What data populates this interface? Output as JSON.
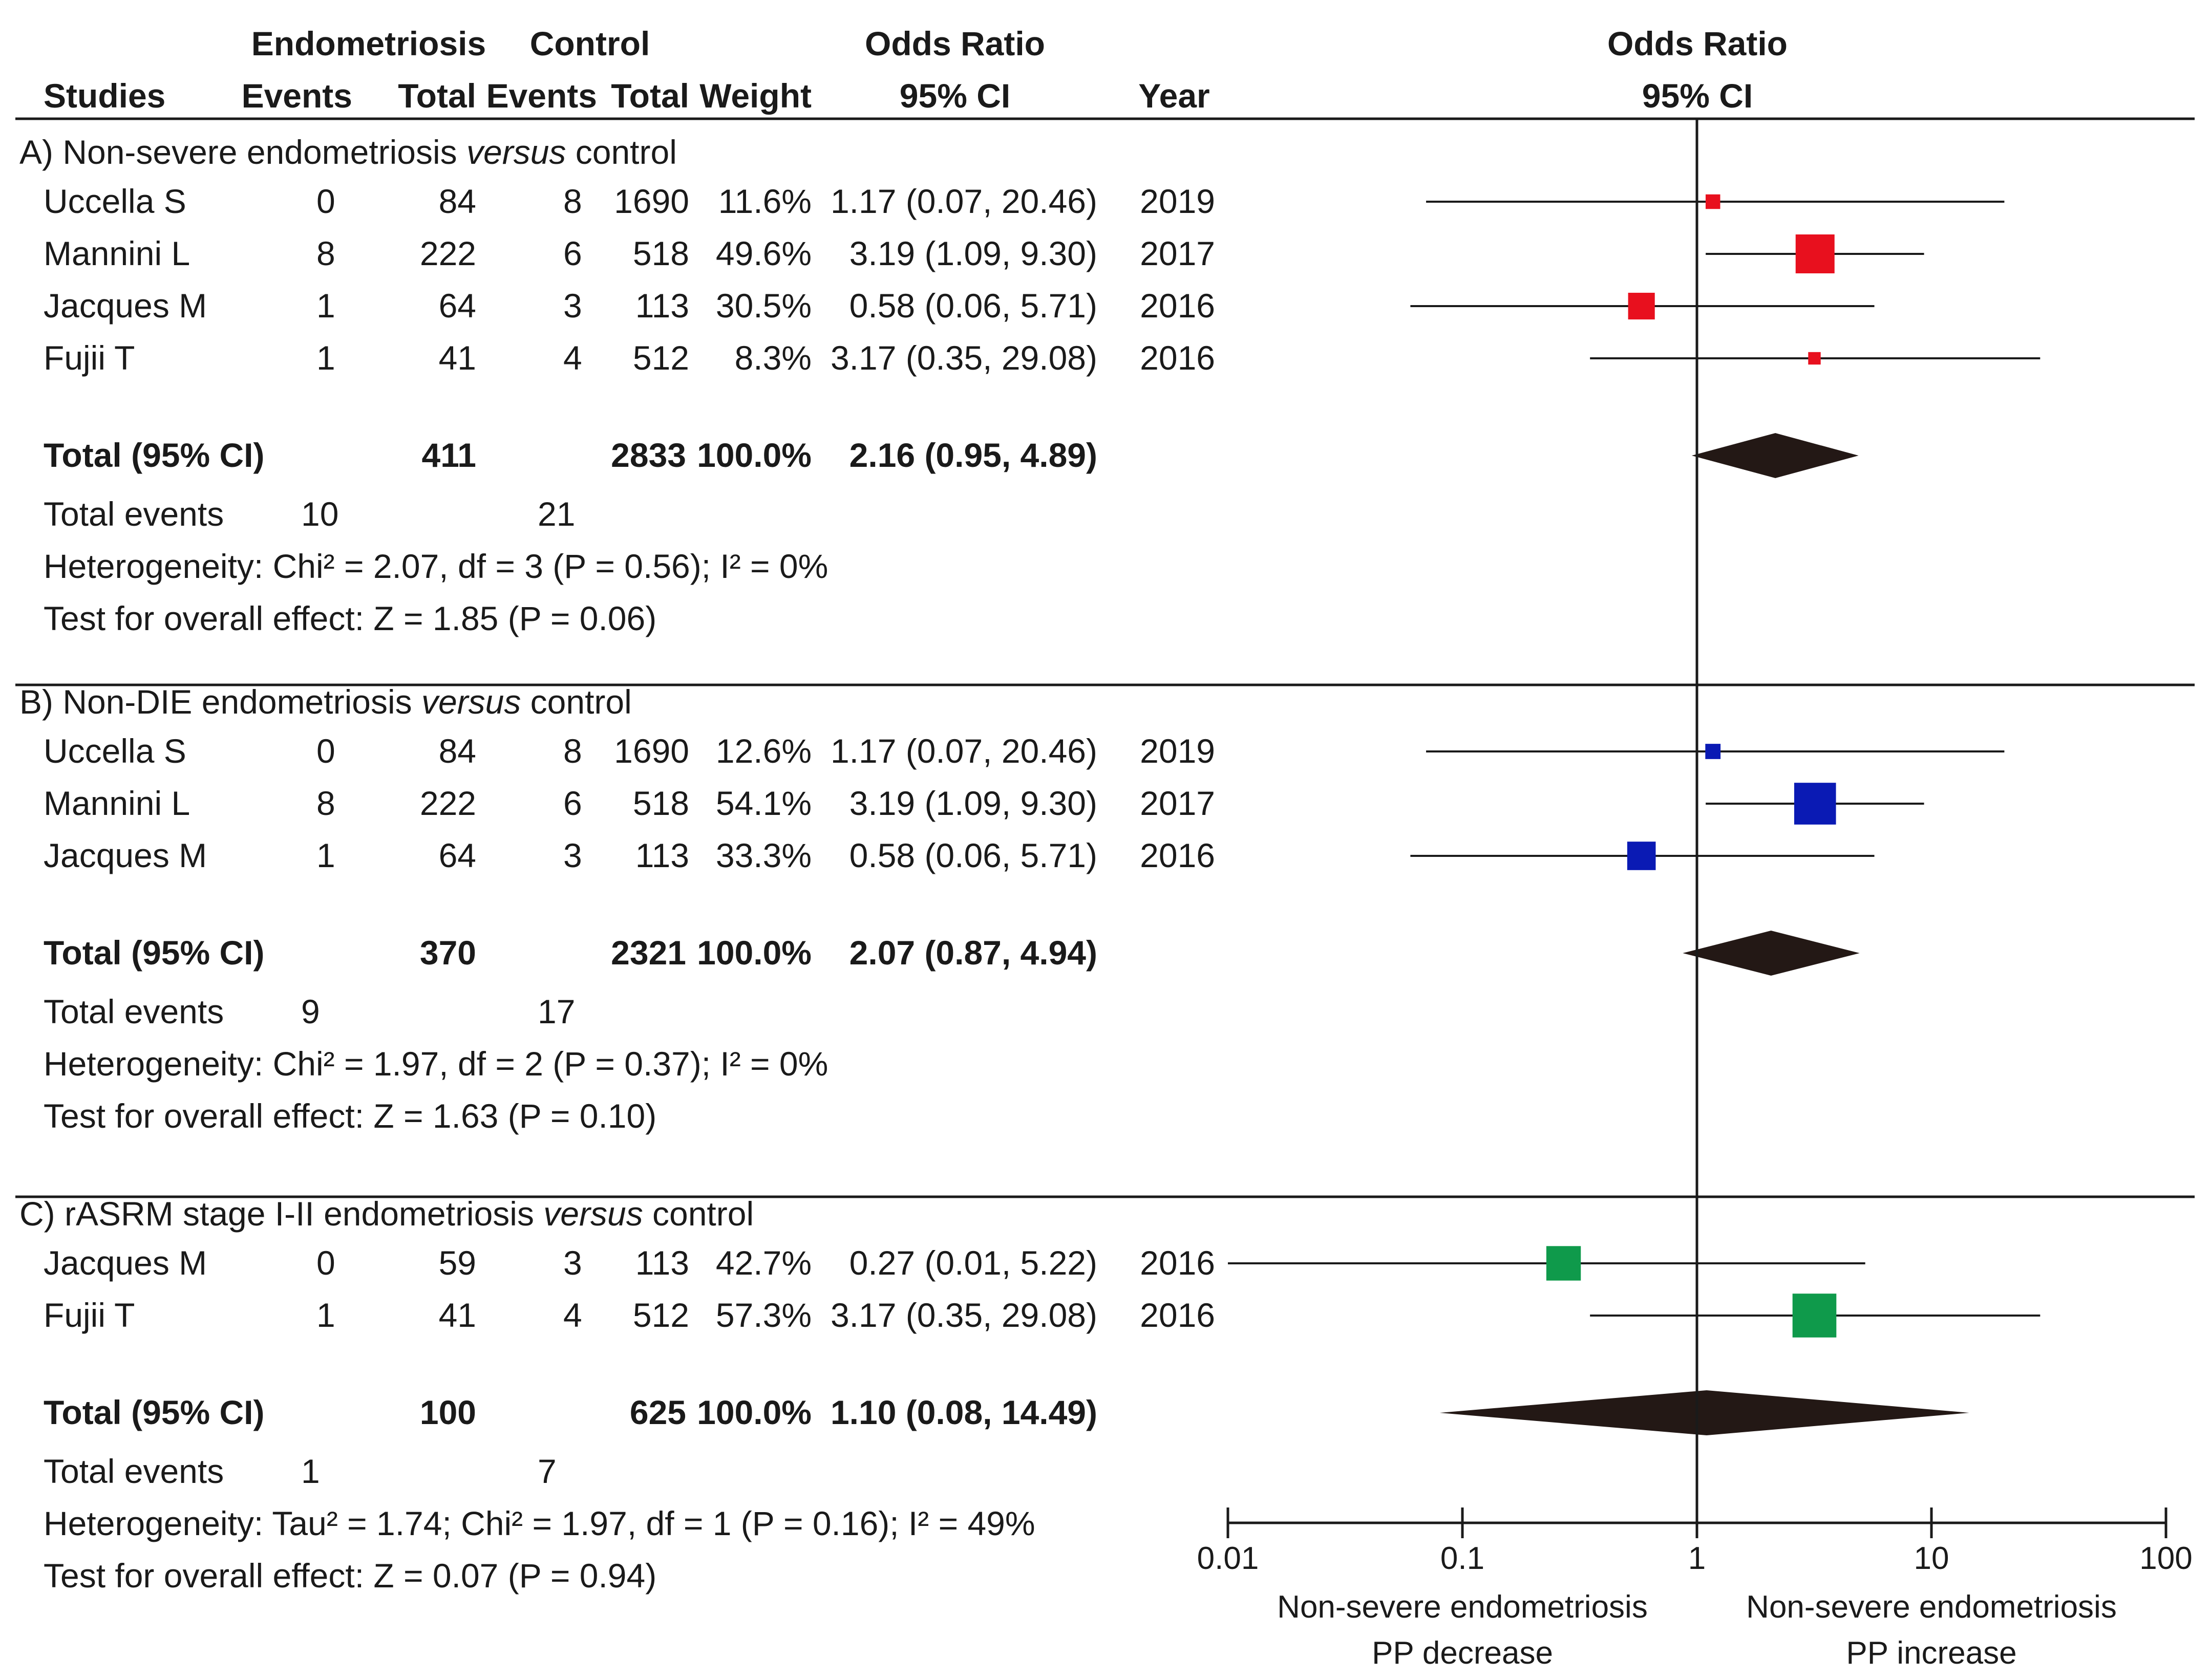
{
  "chart_data": {
    "type": "forest",
    "header": {
      "studies": "Studies",
      "endo_group": "Endometriosis",
      "endo_events": "Events",
      "endo_total": "Total",
      "control_group": "Control",
      "control_events": "Events",
      "control_total": "Total",
      "weight": "Weight",
      "or_title": "Odds Ratio",
      "or_ci": "95% CI",
      "year": "Year",
      "plot_title": "Odds Ratio",
      "plot_ci": "95% CI"
    },
    "x_scale": "log",
    "xlim": [
      0.01,
      100
    ],
    "ticks": [
      {
        "value": 0.01,
        "label": "0.01"
      },
      {
        "value": 0.1,
        "label": "0.1"
      },
      {
        "value": 1,
        "label": "1"
      },
      {
        "value": 10,
        "label": "10"
      },
      {
        "value": 100,
        "label": "100"
      }
    ],
    "x_label_left": [
      "Non-severe endometriosis",
      "PP decrease"
    ],
    "x_label_right": [
      "Non-severe endometriosis",
      "PP increase"
    ],
    "sections": [
      {
        "title_pre": "A) Non-severe endometriosis ",
        "title_italic": "versus",
        "title_post": " control",
        "color": "#e8101e",
        "studies": [
          {
            "name": "Uccella S",
            "endo_events": "0",
            "endo_total": "84",
            "ctrl_events": "8",
            "ctrl_total": "1690",
            "weight": "11.6%",
            "or_text": "1.17 (0.07, 20.46)",
            "year": "2019",
            "or": 1.17,
            "lo": 0.07,
            "hi": 20.46,
            "w": 11.6
          },
          {
            "name": "Mannini L",
            "endo_events": "8",
            "endo_total": "222",
            "ctrl_events": "6",
            "ctrl_total": "518",
            "weight": "49.6%",
            "or_text": "3.19 (1.09, 9.30)",
            "year": "2017",
            "or": 3.19,
            "lo": 1.09,
            "hi": 9.3,
            "w": 49.6
          },
          {
            "name": "Jacques M",
            "endo_events": "1",
            "endo_total": "64",
            "ctrl_events": "3",
            "ctrl_total": "113",
            "weight": "30.5%",
            "or_text": "0.58 (0.06, 5.71)",
            "year": "2016",
            "or": 0.58,
            "lo": 0.06,
            "hi": 5.71,
            "w": 30.5
          },
          {
            "name": "Fujii T",
            "endo_events": "1",
            "endo_total": "41",
            "ctrl_events": "4",
            "ctrl_total": "512",
            "weight": "8.3%",
            "or_text": "3.17 (0.35, 29.08)",
            "year": "2016",
            "or": 3.17,
            "lo": 0.35,
            "hi": 29.08,
            "w": 8.3
          }
        ],
        "total": {
          "label": "Total (95% CI)",
          "endo_total": "411",
          "ctrl_total": "2833",
          "weight": "100.0%",
          "or_text": "2.16 (0.95, 4.89)",
          "or": 2.16,
          "lo": 0.95,
          "hi": 4.89
        },
        "events": {
          "label": "Total events",
          "endo": "10",
          "ctrl": "21"
        },
        "heterogeneity": "Heterogeneity: Chi² = 2.07, df = 3 (P = 0.56); I² = 0%",
        "overall": "Test for overall effect: Z = 1.85 (P = 0.06)"
      },
      {
        "title_pre": "B) Non-DIE endometriosis ",
        "title_italic": "versus",
        "title_post": " control",
        "color": "#0a1ab4",
        "studies": [
          {
            "name": "Uccella S",
            "endo_events": "0",
            "endo_total": "84",
            "ctrl_events": "8",
            "ctrl_total": "1690",
            "weight": "12.6%",
            "or_text": "1.17 (0.07, 20.46)",
            "year": "2019",
            "or": 1.17,
            "lo": 0.07,
            "hi": 20.46,
            "w": 12.6
          },
          {
            "name": "Mannini L",
            "endo_events": "8",
            "endo_total": "222",
            "ctrl_events": "6",
            "ctrl_total": "518",
            "weight": "54.1%",
            "or_text": "3.19 (1.09, 9.30)",
            "year": "2017",
            "or": 3.19,
            "lo": 1.09,
            "hi": 9.3,
            "w": 54.1
          },
          {
            "name": "Jacques M",
            "endo_events": "1",
            "endo_total": "64",
            "ctrl_events": "3",
            "ctrl_total": "113",
            "weight": "33.3%",
            "or_text": "0.58 (0.06, 5.71)",
            "year": "2016",
            "or": 0.58,
            "lo": 0.06,
            "hi": 5.71,
            "w": 33.3
          }
        ],
        "total": {
          "label": "Total (95% CI)",
          "endo_total": "370",
          "ctrl_total": "2321",
          "weight": "100.0%",
          "or_text": "2.07 (0.87, 4.94)",
          "or": 2.07,
          "lo": 0.87,
          "hi": 4.94
        },
        "events": {
          "label": "Total events",
          "endo": "9",
          "ctrl": "17"
        },
        "heterogeneity": "Heterogeneity: Chi² = 1.97, df = 2 (P = 0.37); I² = 0%",
        "overall": "Test for overall effect: Z = 1.63 (P = 0.10)"
      },
      {
        "title_pre": "C) rASRM stage I-II endometriosis ",
        "title_italic": "versus",
        "title_post": " control",
        "color": "#0f9a4b",
        "studies": [
          {
            "name": "Jacques M",
            "endo_events": "0",
            "endo_total": "59",
            "ctrl_events": "3",
            "ctrl_total": "113",
            "weight": "42.7%",
            "or_text": "0.27 (0.01, 5.22)",
            "year": "2016",
            "or": 0.27,
            "lo": 0.01,
            "hi": 5.22,
            "w": 42.7
          },
          {
            "name": "Fujii T",
            "endo_events": "1",
            "endo_total": "41",
            "ctrl_events": "4",
            "ctrl_total": "512",
            "weight": "57.3%",
            "or_text": "3.17 (0.35, 29.08)",
            "year": "2016",
            "or": 3.17,
            "lo": 0.35,
            "hi": 29.08,
            "w": 57.3
          }
        ],
        "total": {
          "label": "Total (95% CI)",
          "endo_total": "100",
          "ctrl_total": "625",
          "weight": "100.0%",
          "or_text": "1.10 (0.08, 14.49)",
          "or": 1.1,
          "lo": 0.08,
          "hi": 14.49
        },
        "events": {
          "label": "Total events",
          "endo": "1",
          "ctrl": "7"
        },
        "heterogeneity": "Heterogeneity: Tau² = 1.74; Chi² = 1.97, df = 1 (P = 0.16); I² = 49%",
        "overall": "Test for overall effect: Z = 0.07 (P = 0.94)"
      }
    ]
  }
}
